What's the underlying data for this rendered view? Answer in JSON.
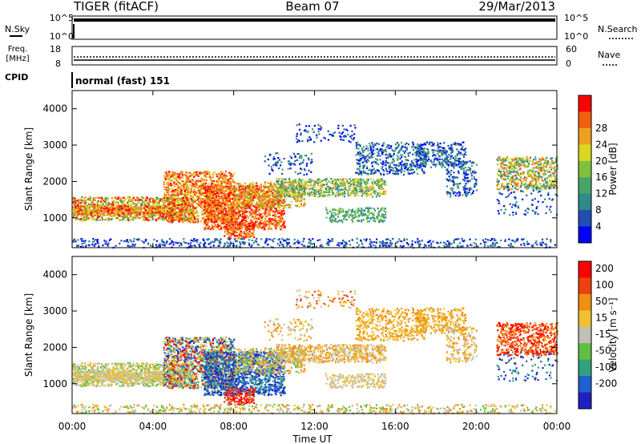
{
  "header": {
    "left": "TIGER (fitACF)",
    "center": "Beam 07",
    "right": "29/Mar/2013"
  },
  "strip1": {
    "label": "N.Sky",
    "right_label": "N.Search",
    "ticks": [
      "10^5",
      "10^0"
    ],
    "right_ticks": [
      "10^5",
      "10^0"
    ]
  },
  "strip2": {
    "label1": "Freq.",
    "label2": "[MHz]",
    "right_label": "Nave",
    "ticks": [
      "18",
      "8"
    ],
    "right_ticks": [
      "60",
      "0"
    ]
  },
  "strip3": {
    "label": "CPID",
    "value": "normal (fast) 151"
  },
  "chart_data": [
    {
      "type": "heatmap",
      "title": "Power",
      "xlabel": "",
      "ylabel": "Slant Range [km]",
      "ylim": [
        180,
        4500
      ],
      "yticks": [
        "1000",
        "2000",
        "3000",
        "4000"
      ],
      "xticks": [
        "00:00",
        "04:00",
        "08:00",
        "12:00",
        "16:00",
        "20:00",
        "00:00"
      ],
      "colorbar": {
        "label": "Power [dB]",
        "ticks": [
          "4",
          "8",
          "12",
          "16",
          "20",
          "24",
          "28"
        ],
        "colors": [
          "#0000ff",
          "#1f4fb0",
          "#2f8a8a",
          "#4aa46a",
          "#7fc23a",
          "#d8d820",
          "#f0a020",
          "#f06010",
          "#ff0000"
        ]
      }
    },
    {
      "type": "heatmap",
      "title": "Velocity",
      "xlabel": "Time UT",
      "ylabel": "Slant Range [km]",
      "ylim": [
        180,
        4500
      ],
      "yticks": [
        "1000",
        "2000",
        "3000",
        "4000"
      ],
      "xticks": [
        "00:00",
        "04:00",
        "08:00",
        "12:00",
        "16:00",
        "20:00",
        "00:00"
      ],
      "colorbar": {
        "label": "Velocity [m s⁻¹]",
        "ticks": [
          "200",
          "100",
          "50",
          "15",
          "-15",
          "-50",
          "-100",
          "-200"
        ],
        "colors": [
          "#2020c0",
          "#2060d0",
          "#30a080",
          "#60c040",
          "#c0c0b8",
          "#f0c030",
          "#f09010",
          "#f04010",
          "#ff0000"
        ]
      }
    }
  ]
}
